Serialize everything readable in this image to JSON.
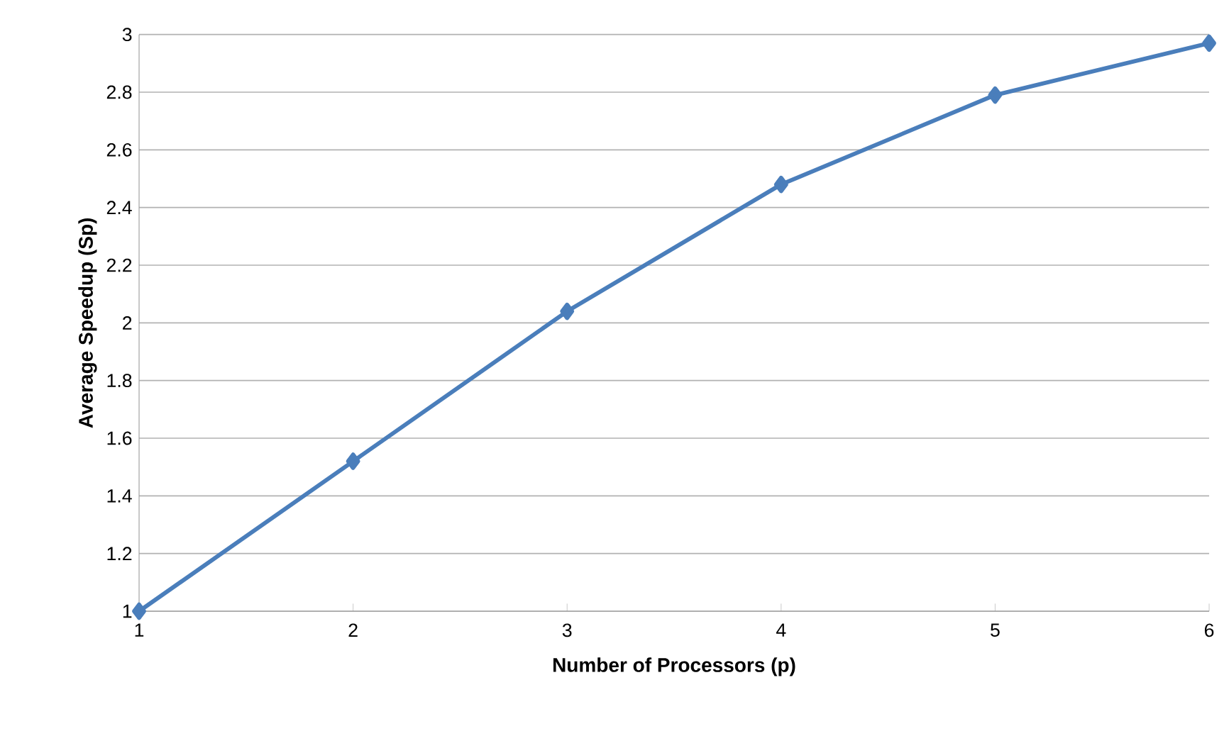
{
  "chart_data": {
    "type": "line",
    "xlabel": "Number of Processors (p)",
    "ylabel": "Average Speedup (Sp)",
    "x": [
      1,
      2,
      3,
      4,
      5,
      6
    ],
    "series": [
      {
        "color": "#4a7ebb",
        "values": [
          1,
          1.52,
          2.04,
          2.48,
          2.79,
          2.97
        ]
      }
    ],
    "xlim": [
      1,
      6
    ],
    "ylim": [
      1,
      3
    ],
    "xticks": [
      1,
      2,
      3,
      4,
      5,
      6
    ],
    "yticks": [
      1,
      1.2,
      1.4,
      1.6,
      1.8,
      2,
      2.2,
      2.4,
      2.6,
      2.8,
      3
    ],
    "grid": "y",
    "marker": "diamond",
    "line_style": "solid"
  }
}
